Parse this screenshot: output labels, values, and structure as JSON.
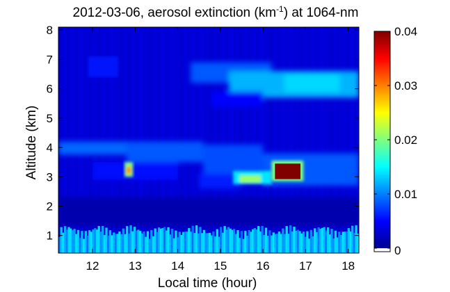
{
  "chart_data": {
    "type": "heatmap",
    "title": {
      "prefix": "2012-03-06, aerosol extinction (km",
      "superscript": "-1",
      "suffix": ") at 1064-nm"
    },
    "xlabel": "Local time (hour)",
    "ylabel": "Altitude (km)",
    "xlim": [
      11.2,
      18.25
    ],
    "ylim": [
      0.4,
      8.1
    ],
    "xticks": [
      12,
      13,
      14,
      15,
      16,
      17,
      18
    ],
    "yticks": [
      1,
      2,
      3,
      4,
      5,
      6,
      7,
      8
    ],
    "colorbar": {
      "range": [
        0,
        0.04
      ],
      "ticks": [
        0,
        0.01,
        0.02,
        0.03,
        0.04
      ],
      "tick_labels": [
        "0",
        "0.01",
        "0.02",
        "0.03",
        "0.04"
      ],
      "colormap": "jet",
      "zero_color": "#ffffff"
    },
    "features": [
      {
        "name": "boundary-layer",
        "x_range": [
          11.2,
          18.25
        ],
        "y_range": [
          0.4,
          1.3
        ],
        "value": 0.012
      },
      {
        "name": "layer-around-3.5km",
        "x_range": [
          11.2,
          18.25
        ],
        "y_range": [
          2.6,
          4.2
        ],
        "value": 0.008
      },
      {
        "name": "upper-layer-6km",
        "x_range": [
          14.3,
          18.25
        ],
        "y_range": [
          5.5,
          6.9
        ],
        "value": 0.011
      },
      {
        "name": "feature-7km",
        "x_range": [
          11.9,
          12.6
        ],
        "y_range": [
          6.2,
          7.2
        ],
        "value": 0.006
      },
      {
        "name": "dense-aerosol-patch",
        "x_range": [
          16.25,
          16.9
        ],
        "y_range": [
          2.9,
          3.5
        ],
        "value": 0.04
      },
      {
        "name": "moderate-patch",
        "x_range": [
          15.3,
          16.2
        ],
        "y_range": [
          2.75,
          3.2
        ],
        "value": 0.02
      },
      {
        "name": "small-patch-12.8h",
        "x_range": [
          12.75,
          12.95
        ],
        "y_range": [
          3.0,
          3.5
        ],
        "value": 0.025
      }
    ]
  }
}
